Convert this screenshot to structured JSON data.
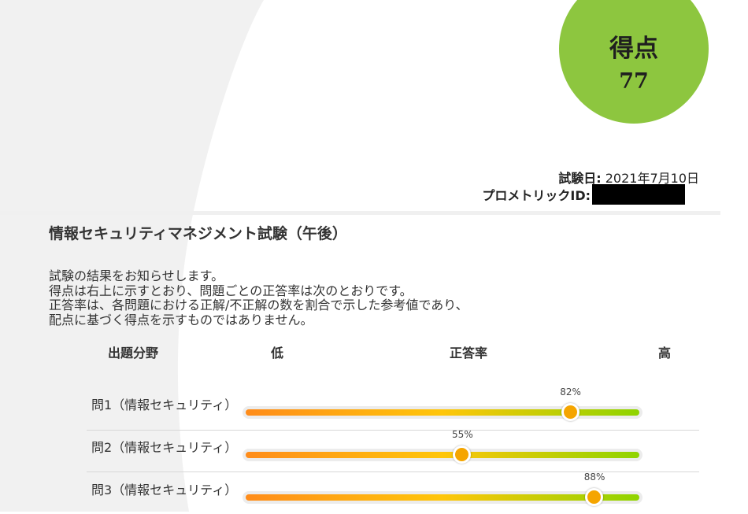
{
  "score": {
    "label": "得点",
    "value": "77",
    "color": "#8dc63f"
  },
  "meta": {
    "exam_date_label": "試験日:",
    "exam_date_value": "2021年7月10日",
    "prometric_id_label": "プロメトリックID:"
  },
  "exam_title": "情報セキュリティマネジメント試験（午後）",
  "intro_lines": [
    "試験の結果をお知らせします。",
    "得点は右上に示すとおり、問題ごとの正答率は次のとおりです。",
    "正答率は、各問題における正解/不正解の数を割合で示した参考値であり、",
    "配点に基づく得点を示すものではありません。"
  ],
  "table_header": {
    "field": "出題分野",
    "low": "低",
    "rate": "正答率",
    "high": "高"
  },
  "results": [
    {
      "label": "問1（情報セキュリティ）",
      "rate": 82,
      "rate_text": "82%"
    },
    {
      "label": "問2（情報セキュリティ）",
      "rate": 55,
      "rate_text": "55%"
    },
    {
      "label": "問3（情報セキュリティ）",
      "rate": 88,
      "rate_text": "88%"
    }
  ],
  "colors": {
    "bar_start": "#ff8c1a",
    "bar_mid": "#ffc60a",
    "bar_end": "#8fd400",
    "marker": "#f5a500"
  }
}
